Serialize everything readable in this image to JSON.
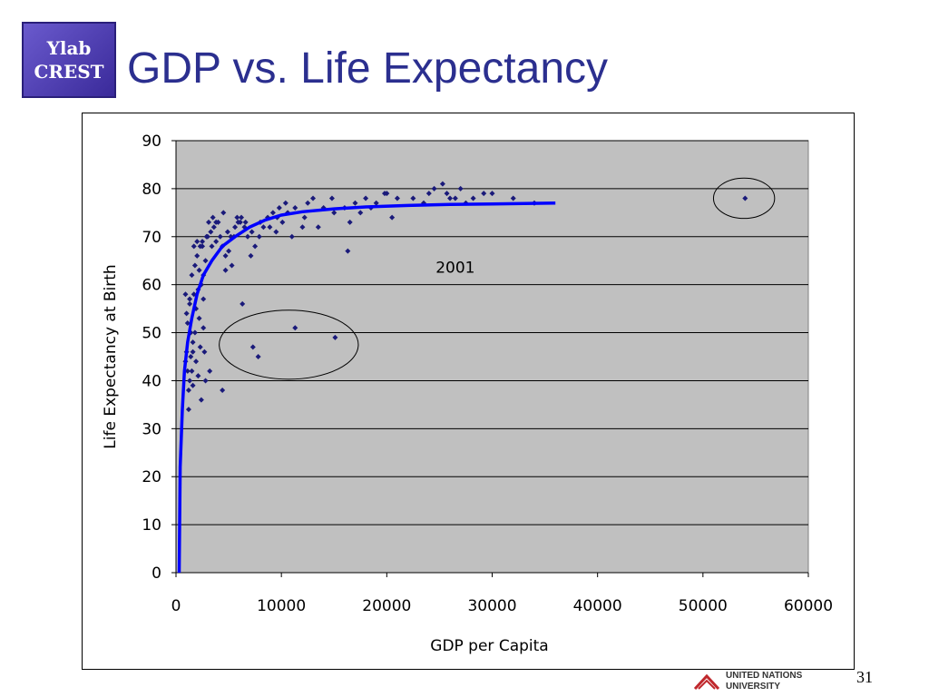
{
  "slide": {
    "logo_line1": "Ylab",
    "logo_line2": "CREST",
    "title": "GDP vs. Life Expectancy",
    "footer_org_line1": "UNITED NATIONS",
    "footer_org_line2": "UNIVERSITY",
    "page_number": "31"
  },
  "colors": {
    "title": "#2b2f8f",
    "plot_bg": "#c0c0c0",
    "points": "#1a1a7a",
    "curve": "#0000ff"
  },
  "chart_data": {
    "type": "scatter",
    "title": "",
    "xlabel": "GDP per Capita",
    "ylabel": "Life Expectancy at Birth",
    "xlim": [
      0,
      60000
    ],
    "ylim": [
      0,
      90
    ],
    "xticks": [
      0,
      10000,
      20000,
      30000,
      40000,
      50000,
      60000
    ],
    "yticks": [
      0,
      10,
      20,
      30,
      40,
      50,
      60,
      70,
      80,
      90
    ],
    "grid": "horizontal",
    "annotation": "2001",
    "series": [
      {
        "kind": "points",
        "points": [
          [
            1200,
            34
          ],
          [
            1300,
            40
          ],
          [
            1500,
            42
          ],
          [
            1400,
            45
          ],
          [
            1000,
            46
          ],
          [
            900,
            44
          ],
          [
            1600,
            48
          ],
          [
            1800,
            50
          ],
          [
            1100,
            52
          ],
          [
            1900,
            55
          ],
          [
            1300,
            57
          ],
          [
            1700,
            58
          ],
          [
            2100,
            59
          ],
          [
            2400,
            60
          ],
          [
            2600,
            62
          ],
          [
            2200,
            63
          ],
          [
            1500,
            62
          ],
          [
            1800,
            64
          ],
          [
            2000,
            66
          ],
          [
            2300,
            68
          ],
          [
            2500,
            69
          ],
          [
            2000,
            69
          ],
          [
            1700,
            68
          ],
          [
            3000,
            70
          ],
          [
            3300,
            71
          ],
          [
            3600,
            72
          ],
          [
            4000,
            73
          ],
          [
            3800,
            69
          ],
          [
            4400,
            68
          ],
          [
            4700,
            66
          ],
          [
            5000,
            67
          ],
          [
            5200,
            70
          ],
          [
            5600,
            72
          ],
          [
            5900,
            73
          ],
          [
            6200,
            74
          ],
          [
            6500,
            72
          ],
          [
            6800,
            70
          ],
          [
            7100,
            66
          ],
          [
            7500,
            68
          ],
          [
            7900,
            70
          ],
          [
            8300,
            72
          ],
          [
            8700,
            74
          ],
          [
            9200,
            75
          ],
          [
            9600,
            74
          ],
          [
            10100,
            73
          ],
          [
            10600,
            75
          ],
          [
            11300,
            76
          ],
          [
            12200,
            74
          ],
          [
            13000,
            78
          ],
          [
            14000,
            76
          ],
          [
            15000,
            75
          ],
          [
            16000,
            76
          ],
          [
            17000,
            77
          ],
          [
            18000,
            78
          ],
          [
            19000,
            77
          ],
          [
            20000,
            79
          ],
          [
            21000,
            78
          ],
          [
            22500,
            78
          ],
          [
            24000,
            79
          ],
          [
            24500,
            80
          ],
          [
            25300,
            81
          ],
          [
            25700,
            79
          ],
          [
            26500,
            78
          ],
          [
            27500,
            77
          ],
          [
            28200,
            78
          ],
          [
            29200,
            79
          ],
          [
            30000,
            79
          ],
          [
            32000,
            78
          ],
          [
            34000,
            77
          ],
          [
            1200,
            38
          ],
          [
            1600,
            39
          ],
          [
            2100,
            41
          ],
          [
            2800,
            40
          ],
          [
            3200,
            42
          ],
          [
            2400,
            36
          ],
          [
            2700,
            46
          ],
          [
            1400,
            50
          ],
          [
            2600,
            57
          ],
          [
            2300,
            47
          ],
          [
            1100,
            42
          ],
          [
            6300,
            56
          ],
          [
            7300,
            47
          ],
          [
            7800,
            45
          ],
          [
            11300,
            51
          ],
          [
            15100,
            49
          ],
          [
            4400,
            38
          ],
          [
            16300,
            67
          ],
          [
            13500,
            72
          ],
          [
            54000,
            78
          ],
          [
            3500,
            74
          ],
          [
            4500,
            75
          ],
          [
            5800,
            74
          ],
          [
            6100,
            73
          ],
          [
            3800,
            73
          ],
          [
            4200,
            70
          ],
          [
            4700,
            63
          ],
          [
            5300,
            64
          ],
          [
            2900,
            70
          ],
          [
            3100,
            73
          ],
          [
            1600,
            46
          ],
          [
            1900,
            44
          ],
          [
            2200,
            53
          ],
          [
            2600,
            51
          ],
          [
            1000,
            54
          ],
          [
            1300,
            56
          ],
          [
            900,
            58
          ],
          [
            2500,
            68
          ],
          [
            2800,
            65
          ],
          [
            3400,
            68
          ],
          [
            4900,
            71
          ],
          [
            5500,
            70
          ],
          [
            6600,
            73
          ],
          [
            7200,
            71
          ],
          [
            8000,
            73
          ],
          [
            8900,
            72
          ],
          [
            9800,
            76
          ],
          [
            10400,
            77
          ],
          [
            12500,
            77
          ],
          [
            14800,
            78
          ],
          [
            17500,
            75
          ],
          [
            19800,
            79
          ],
          [
            23500,
            77
          ],
          [
            26000,
            78
          ],
          [
            27000,
            80
          ],
          [
            20500,
            74
          ],
          [
            18500,
            76
          ],
          [
            16500,
            73
          ],
          [
            12000,
            72
          ],
          [
            11000,
            70
          ],
          [
            9500,
            71
          ]
        ]
      },
      {
        "kind": "trend",
        "points": [
          [
            300,
            0
          ],
          [
            400,
            22
          ],
          [
            600,
            34
          ],
          [
            800,
            42
          ],
          [
            1100,
            48
          ],
          [
            1500,
            53
          ],
          [
            2000,
            58
          ],
          [
            2600,
            62
          ],
          [
            3400,
            65
          ],
          [
            4400,
            68
          ],
          [
            5600,
            70
          ],
          [
            7000,
            72
          ],
          [
            8500,
            73.5
          ],
          [
            10000,
            74.5
          ],
          [
            12000,
            75.2
          ],
          [
            15000,
            75.8
          ],
          [
            18000,
            76.2
          ],
          [
            22000,
            76.5
          ],
          [
            26000,
            76.7
          ],
          [
            30000,
            76.8
          ],
          [
            33000,
            76.9
          ],
          [
            36000,
            77
          ]
        ]
      }
    ],
    "highlight_ellipses": [
      {
        "cx": 10700,
        "cy": 47.5,
        "rx": 6600,
        "ry": 7.2
      },
      {
        "cx": 53900,
        "cy": 78,
        "rx": 2900,
        "ry": 4.2
      }
    ]
  }
}
